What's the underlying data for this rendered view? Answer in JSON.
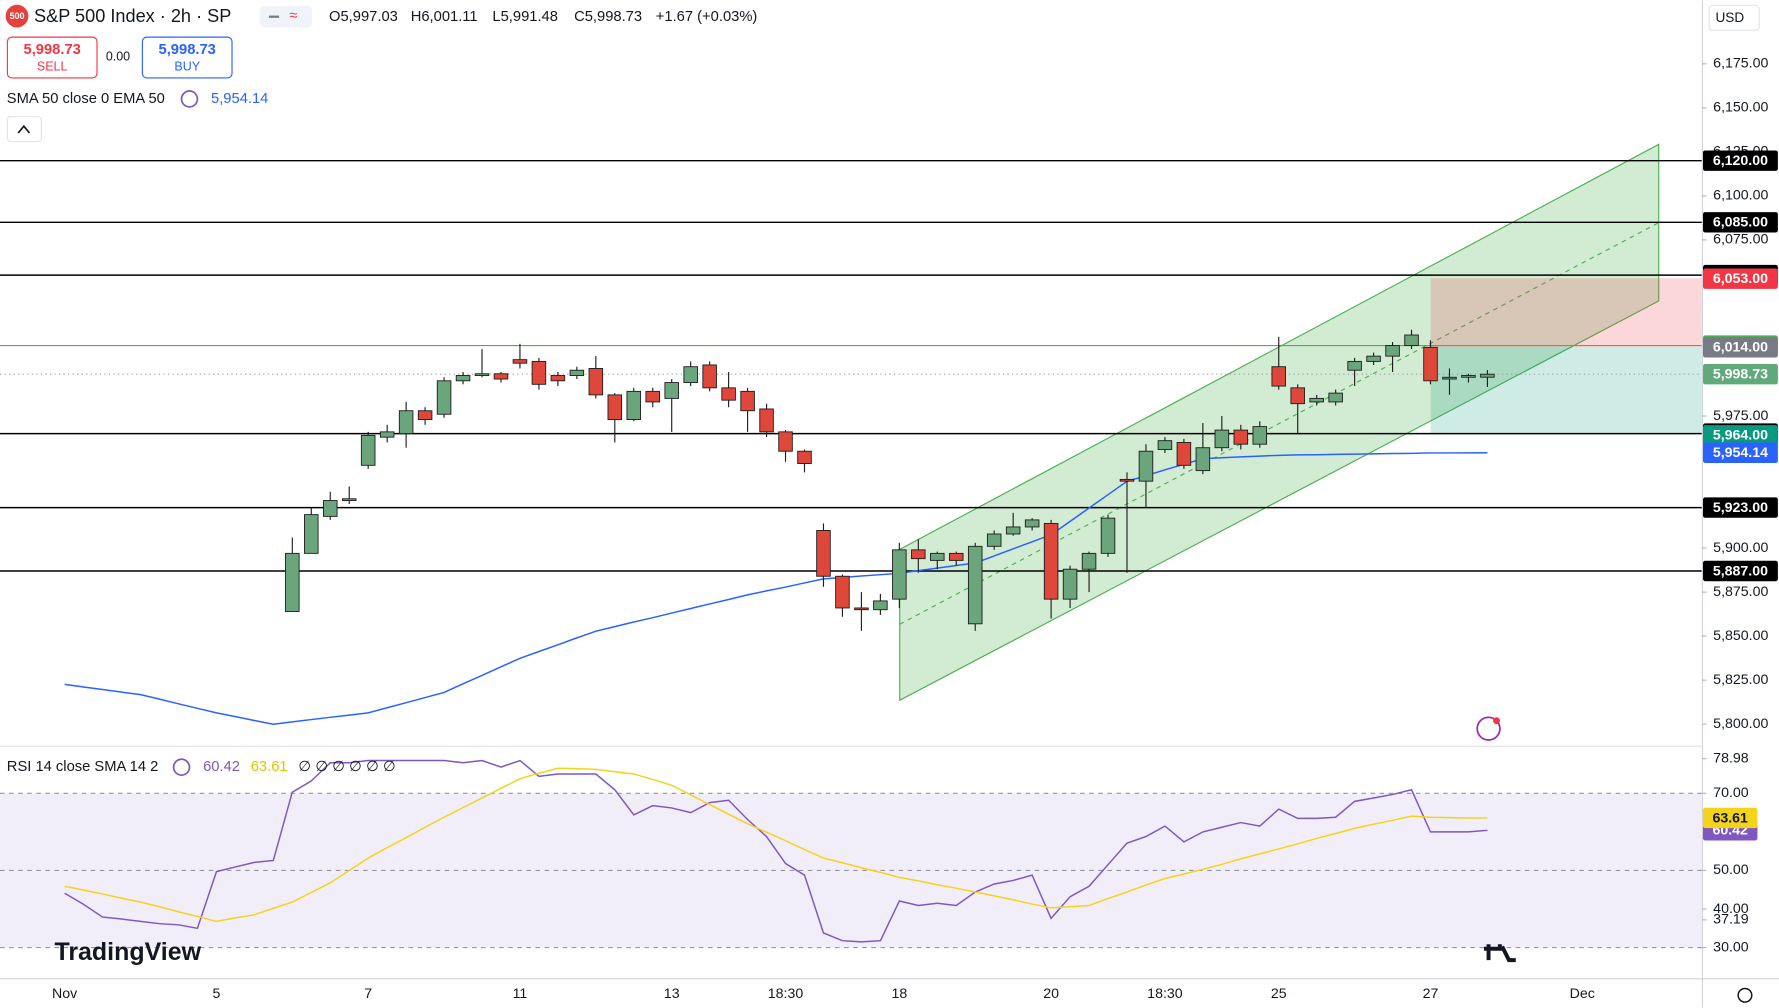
{
  "header": {
    "logo": "500",
    "title": "S&P 500 Index · 2h · SP",
    "ohlc": [
      "O5,997.03",
      "H6,001.11",
      "L5,991.48",
      "C5,998.73"
    ],
    "change": "+1.67 (+0.03%)",
    "sell_price": "5,998.73",
    "sell": "SELL",
    "spread": "0.00",
    "buy_price": "5,998.73",
    "buy": "BUY",
    "currency": "USD",
    "brand": "TradingView"
  },
  "chart_data": [
    {
      "type": "candlestick",
      "legend": "SMA 50 close 0 EMA 50",
      "legend_value": "5,954.14",
      "categories": [
        "Nov",
        null,
        null,
        null,
        null,
        null,
        null,
        null,
        "5",
        null,
        null,
        null,
        null,
        null,
        null,
        null,
        "7",
        null,
        null,
        null,
        null,
        null,
        null,
        null,
        "11",
        null,
        null,
        null,
        null,
        null,
        null,
        null,
        "13",
        null,
        null,
        null,
        null,
        null,
        "18:30",
        null,
        null,
        null,
        null,
        null,
        "18",
        null,
        null,
        null,
        null,
        null,
        null,
        null,
        "20",
        null,
        null,
        null,
        null,
        null,
        "18:30",
        null,
        null,
        null,
        null,
        null,
        "25",
        null,
        null,
        null,
        null,
        null,
        null,
        null,
        "27",
        null,
        null,
        null,
        null,
        null,
        null,
        null,
        "Dec"
      ],
      "open": [
        null,
        null,
        null,
        null,
        null,
        null,
        null,
        null,
        null,
        null,
        null,
        null,
        5864,
        5897,
        5918,
        5927,
        5947,
        5963,
        5965,
        5978,
        5976,
        5995,
        5998,
        5999,
        6007,
        6006,
        5998,
        5998,
        6002,
        5987,
        5973,
        5989,
        5985,
        5994,
        6004,
        5991,
        5989,
        5979,
        5966,
        5955,
        5910,
        5884,
        5866,
        5865,
        5871,
        5899,
        5893,
        5897,
        5857,
        5901,
        5908,
        5912,
        5914,
        5871,
        5888,
        5897,
        5939,
        5938,
        5956,
        5960,
        5944,
        5957,
        5967,
        5959,
        6003,
        5991,
        5983,
        5983,
        6001,
        6006,
        6009,
        6015,
        6014,
        5996,
        5997,
        5997.03,
        null,
        null,
        null,
        null,
        null
      ],
      "high": [
        null,
        null,
        null,
        null,
        null,
        null,
        null,
        null,
        null,
        null,
        null,
        null,
        5906,
        5923,
        5932,
        5935,
        5966,
        5970,
        5983,
        5980,
        5997,
        6000,
        6013,
        6000,
        6016,
        6008,
        6000,
        6003,
        6009,
        5988,
        5991,
        5991,
        5996,
        6006,
        6006,
        6000,
        5991,
        5982,
        5967,
        5956,
        5914,
        5885,
        5875,
        5874,
        5903,
        5905,
        5898,
        5898,
        5903,
        5910,
        5920,
        5917,
        5916,
        5890,
        5898,
        5919,
        5943,
        5959,
        5963,
        5962,
        5971,
        5975,
        5970,
        5972,
        6020,
        5993,
        5987,
        5990,
        6008,
        6011,
        6017,
        6024,
        6018,
        6002,
        5999,
        6001.11,
        null,
        null,
        null,
        null,
        null
      ],
      "low": [
        null,
        null,
        null,
        null,
        null,
        null,
        null,
        null,
        null,
        null,
        null,
        null,
        5864,
        5897,
        5916,
        5925,
        5945,
        5960,
        5957,
        5970,
        5974,
        5993,
        5997,
        5994,
        6002,
        5990,
        5992,
        5996,
        5985,
        5960,
        5972,
        5980,
        5966,
        5992,
        5989,
        5980,
        5966,
        5963,
        5949,
        5943,
        5878,
        5861,
        5853,
        5862,
        5866,
        5886,
        5888,
        5890,
        5853,
        5899,
        5907,
        5910,
        5860,
        5866,
        5875,
        5895,
        5886,
        5923,
        5954,
        5945,
        5942,
        5955,
        5956,
        5957,
        5990,
        5965,
        5981,
        5981,
        5992,
        6004,
        6000,
        6013,
        5993,
        5987,
        5994,
        5991.48,
        null,
        null,
        null,
        null,
        null
      ],
      "close": [
        null,
        null,
        null,
        null,
        null,
        null,
        null,
        null,
        null,
        null,
        null,
        null,
        5897,
        5919,
        5927,
        5928,
        5964,
        5966,
        5978,
        5973,
        5995,
        5998,
        5999,
        5996,
        6005,
        5993,
        5995,
        6001,
        5987,
        5973,
        5989,
        5983,
        5994,
        6003,
        5991,
        5984,
        5978,
        5966,
        5955,
        5948,
        5884,
        5866,
        5865,
        5870,
        5899,
        5894,
        5897,
        5893,
        5901,
        5908,
        5912,
        5916,
        5871,
        5888,
        5897,
        5917,
        5938,
        5955,
        5961,
        5947,
        5957,
        5967,
        5959,
        5969,
        5992,
        5982,
        5985,
        5988,
        6006,
        6009,
        6015,
        6021,
        5995,
        5997,
        5998,
        5998.73,
        null,
        null,
        null,
        null,
        null
      ],
      "up_color": "#6aa57c",
      "down_color": "#e0473b",
      "series": [
        {
          "color": "#2962ff",
          "values": [
            5822.6,
            5821.1,
            5819.7,
            5818.2,
            5816.8,
            5814.2,
            5811.6,
            5809.0,
            5806.4,
            5804.3,
            5802.1,
            5800.0,
            5801.3,
            5802.6,
            5803.9,
            5805.1,
            5806.4,
            5809.3,
            5812.2,
            5815.1,
            5818.0,
            5822.9,
            5827.7,
            5832.6,
            5837.4,
            5841.3,
            5845.1,
            5849.0,
            5852.8,
            5855.4,
            5858.0,
            5860.5,
            5863.1,
            5865.7,
            5868.3,
            5870.8,
            5873.4,
            5875.7,
            5877.9,
            5880.2,
            5882.5,
            5883.3,
            5884.1,
            5884.9,
            5885.7,
            5887.2,
            5888.6,
            5890.1,
            5891.5,
            5895.5,
            5899.6,
            5903.6,
            5907.6,
            5915.2,
            5922.8,
            5930.3,
            5937.9,
            5941.1,
            5944.4,
            5947.6,
            5950.8,
            5951.3,
            5951.8,
            5952.2,
            5952.7,
            5952.9,
            5953.0,
            5953.2,
            5953.4,
            5953.5,
            5953.7,
            5953.8,
            5954.0,
            5954.0,
            5954.1,
            5954.14,
            null,
            null,
            null,
            null,
            null
          ]
        }
      ],
      "ylim": [
        5787.8,
        6211.1
      ],
      "yticks": [
        {
          "value": 6175,
          "label": "6,175.00"
        },
        {
          "value": 6150,
          "label": "6,150.00"
        },
        {
          "value": 6125,
          "label": "6,125.00"
        },
        {
          "value": 6100,
          "label": "6,100.00"
        },
        {
          "value": 6075,
          "label": "6,075.00"
        },
        {
          "value": 5975,
          "label": "5,975.00"
        },
        {
          "value": 5900,
          "label": "5,900.00"
        },
        {
          "value": 5875,
          "label": "5,875.00"
        },
        {
          "value": 5850,
          "label": "5,850.00"
        },
        {
          "value": 5825,
          "label": "5,825.00"
        },
        {
          "value": 5800,
          "label": "5,800.00"
        }
      ],
      "levels": [
        {
          "value": 6120,
          "label": "6,120.00",
          "color": "#000000",
          "line_style": "solid"
        },
        {
          "value": 6085,
          "label": "6,085.00",
          "color": "#000000",
          "line_style": "solid"
        },
        {
          "value": 6055,
          "label": "6,055.00",
          "color": "#000000",
          "line_style": "solid"
        },
        {
          "value": 6053,
          "label": "6,053.00",
          "color": "#f23645"
        },
        {
          "value": 6015,
          "label": "6,015.00",
          "color": "#4caf50",
          "line_style": "thin"
        },
        {
          "value": 6014,
          "label": "6,014.00",
          "color": "#787b86"
        },
        {
          "value": 5998.73,
          "label": "5,998.73",
          "color": "#5fa97a",
          "line_style": "dotted"
        },
        {
          "value": 5965,
          "label": "5,965.00",
          "color": "#000000",
          "line_style": "solid"
        },
        {
          "value": 5964,
          "label": "5,964.00",
          "color": "#089981"
        },
        {
          "value": 5954.14,
          "label": "5,954.14",
          "color": "#2962ff"
        },
        {
          "value": 5923,
          "label": "5,923.00",
          "color": "#000000",
          "line_style": "solid"
        },
        {
          "value": 5887,
          "label": "5,887.00",
          "color": "#000000",
          "line_style": "solid"
        }
      ]
    },
    {
      "type": "line",
      "legend": "RSI 14 close SMA 14 2",
      "legend_values": [
        "60.42",
        "63.61"
      ],
      "legend_extra": "∅ ∅ ∅ ∅ ∅ ∅",
      "series": [
        {
          "color": "#7e57c2",
          "values": [
            44.1,
            41.2,
            37.9,
            37.4,
            36.8,
            36.2,
            35.9,
            35.0,
            49.7,
            50.9,
            52.1,
            52.6,
            70.3,
            73.2,
            77.9,
            77.9,
            78.5,
            78.5,
            78.5,
            78.5,
            78.5,
            77.9,
            78.5,
            76.8,
            78.5,
            74.4,
            75.0,
            75.0,
            75.0,
            70.9,
            64.4,
            66.8,
            66.2,
            65.0,
            67.6,
            68.2,
            63.2,
            58.8,
            51.8,
            48.8,
            33.8,
            31.8,
            31.5,
            31.8,
            42.1,
            40.9,
            41.5,
            40.9,
            44.4,
            46.5,
            47.4,
            48.8,
            37.6,
            43.2,
            45.9,
            51.5,
            57.1,
            58.8,
            61.5,
            57.4,
            60.0,
            61.2,
            62.4,
            61.5,
            65.9,
            63.5,
            63.5,
            63.8,
            67.9,
            68.8,
            69.7,
            70.9,
            60.0,
            60.0,
            60.0,
            60.42,
            null,
            null,
            null,
            null,
            null
          ],
          "last_label": "60.42"
        },
        {
          "color": "#f5d31b",
          "values": [
            45.9,
            44.9,
            43.9,
            42.8,
            41.8,
            40.6,
            39.3,
            38.1,
            36.8,
            37.7,
            38.5,
            40.2,
            41.8,
            44.3,
            46.8,
            50.0,
            53.2,
            55.9,
            58.5,
            61.2,
            63.8,
            66.3,
            68.8,
            71.3,
            73.8,
            75.2,
            76.5,
            76.4,
            76.2,
            75.6,
            75.0,
            73.6,
            72.1,
            69.6,
            67.1,
            64.6,
            62.1,
            59.9,
            57.7,
            55.4,
            53.2,
            52.0,
            50.7,
            49.5,
            48.2,
            47.3,
            46.3,
            45.4,
            44.4,
            43.4,
            42.4,
            41.3,
            40.3,
            40.6,
            40.9,
            42.7,
            44.4,
            46.2,
            47.9,
            49.1,
            50.3,
            51.6,
            53.0,
            54.3,
            55.6,
            56.9,
            58.3,
            59.6,
            60.9,
            62.0,
            63.0,
            64.1,
            63.8,
            63.7,
            63.6,
            63.61,
            null,
            null,
            null,
            null,
            null
          ],
          "last_label": "63.61"
        }
      ],
      "ylim": [
        22.06,
        82.35
      ],
      "yticks": [
        {
          "value": 30,
          "label": "30.00"
        },
        {
          "value": 40,
          "label": "40.00"
        },
        {
          "value": 50,
          "label": "50.00"
        },
        {
          "value": 70,
          "label": "70.00"
        }
      ],
      "extra_labels": [
        {
          "value": 78.98,
          "label": "78.98"
        },
        {
          "value": 37.19,
          "label": "37.19"
        }
      ],
      "band": [
        30,
        70
      ],
      "dashed_levels": [
        70,
        50,
        30
      ]
    }
  ]
}
